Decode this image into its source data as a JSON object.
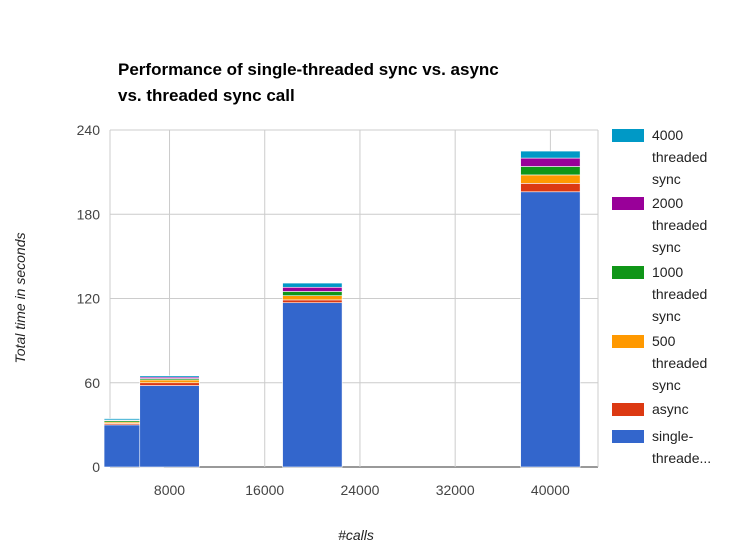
{
  "chart_data": {
    "type": "bar",
    "stacked": true,
    "title_lines": [
      "Performance of single-threaded sync vs. async",
      "vs. threaded sync call"
    ],
    "xlabel": "#calls",
    "ylabel": "Total time in seconds",
    "xlim": [
      3000,
      44000
    ],
    "ylim": [
      0,
      240
    ],
    "x_ticks": [
      8000,
      16000,
      24000,
      32000,
      40000
    ],
    "y_ticks": [
      0,
      60,
      120,
      180,
      240
    ],
    "bar_width_units": 5000,
    "grid": true,
    "legend_position": "right",
    "x": [
      5000,
      8000,
      20000,
      40000
    ],
    "series": [
      {
        "name": "single-threaded sync",
        "legend_lines": [
          "single-",
          "threade..."
        ],
        "color": "#3366cc",
        "values": [
          30,
          58,
          117,
          196
        ]
      },
      {
        "name": "async",
        "legend_lines": [
          "async"
        ],
        "color": "#dc3912",
        "values": [
          1,
          2,
          2,
          6
        ]
      },
      {
        "name": "500 threaded sync",
        "legend_lines": [
          "500",
          "threaded",
          "sync"
        ],
        "color": "#ff9900",
        "values": [
          1,
          2,
          3,
          6
        ]
      },
      {
        "name": "1000 threaded sync",
        "legend_lines": [
          "1000",
          "threaded",
          "sync"
        ],
        "color": "#109618",
        "values": [
          1,
          1,
          3,
          6
        ]
      },
      {
        "name": "2000 threaded sync",
        "legend_lines": [
          "2000",
          "threaded",
          "sync"
        ],
        "color": "#990099",
        "values": [
          0.5,
          1,
          3,
          6
        ]
      },
      {
        "name": "4000 threaded sync",
        "legend_lines": [
          "4000",
          "threaded",
          "sync"
        ],
        "color": "#0099c6",
        "values": [
          1,
          1,
          3,
          5
        ]
      }
    ]
  }
}
